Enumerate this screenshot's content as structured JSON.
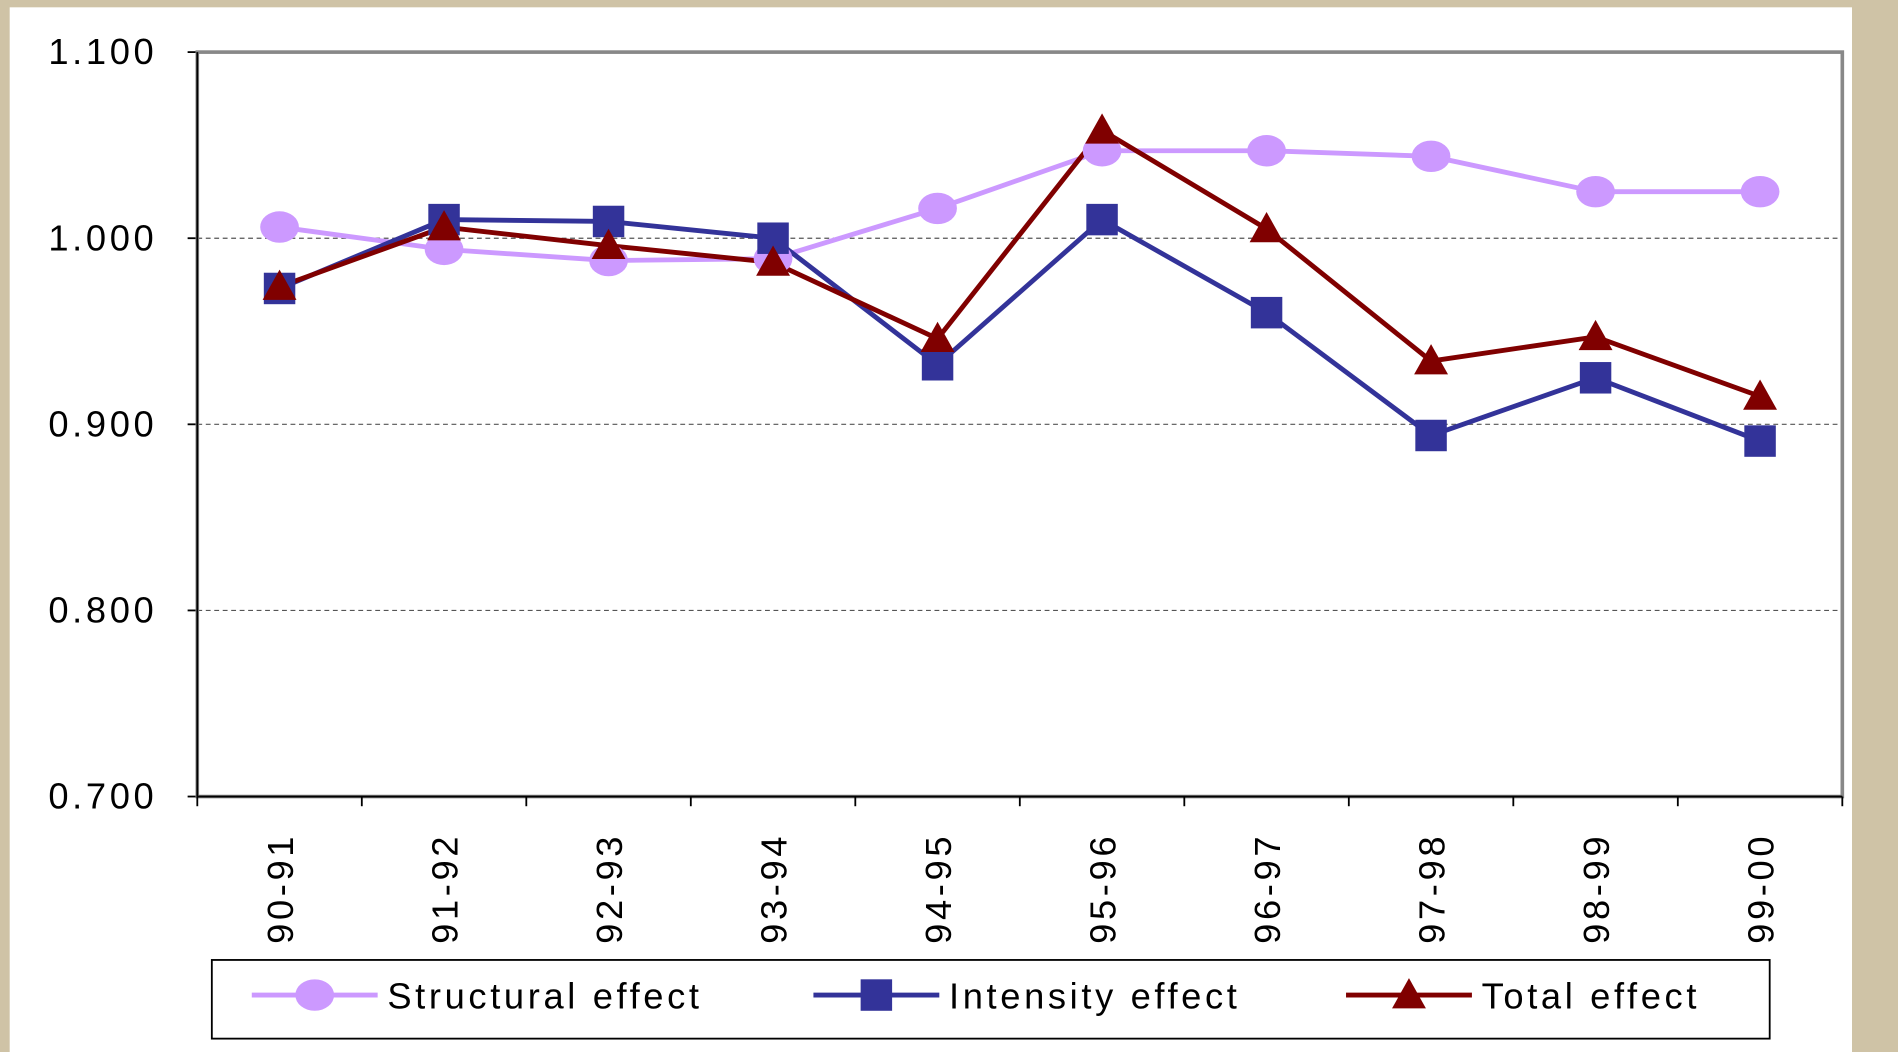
{
  "chart_data": {
    "type": "line",
    "categories": [
      "90-91",
      "91-92",
      "92-93",
      "93-94",
      "94-95",
      "95-96",
      "96-97",
      "97-98",
      "98-99",
      "99-00"
    ],
    "series": [
      {
        "name": "Structural effect",
        "color": "#cc99ff",
        "marker": "circle",
        "values": [
          1.006,
          0.994,
          0.988,
          0.989,
          1.016,
          1.047,
          1.047,
          1.044,
          1.025,
          1.025
        ]
      },
      {
        "name": "Intensity effect",
        "color": "#333399",
        "marker": "square",
        "values": [
          0.973,
          1.01,
          1.009,
          1.0,
          0.932,
          1.01,
          0.96,
          0.894,
          0.925,
          0.891
        ]
      },
      {
        "name": "Total effect",
        "color": "#800000",
        "marker": "triangle",
        "values": [
          0.974,
          1.006,
          0.996,
          0.987,
          0.946,
          1.058,
          1.005,
          0.934,
          0.947,
          0.915
        ]
      }
    ],
    "ylim": [
      0.7,
      1.1
    ],
    "yticks": [
      {
        "value": 0.7,
        "label": "0.700"
      },
      {
        "value": 0.8,
        "label": "0.800"
      },
      {
        "value": 0.9,
        "label": "0.900"
      },
      {
        "value": 1.0,
        "label": "1.000"
      },
      {
        "value": 1.1,
        "label": "1.100"
      }
    ],
    "grid": true,
    "legend": "bottom"
  }
}
